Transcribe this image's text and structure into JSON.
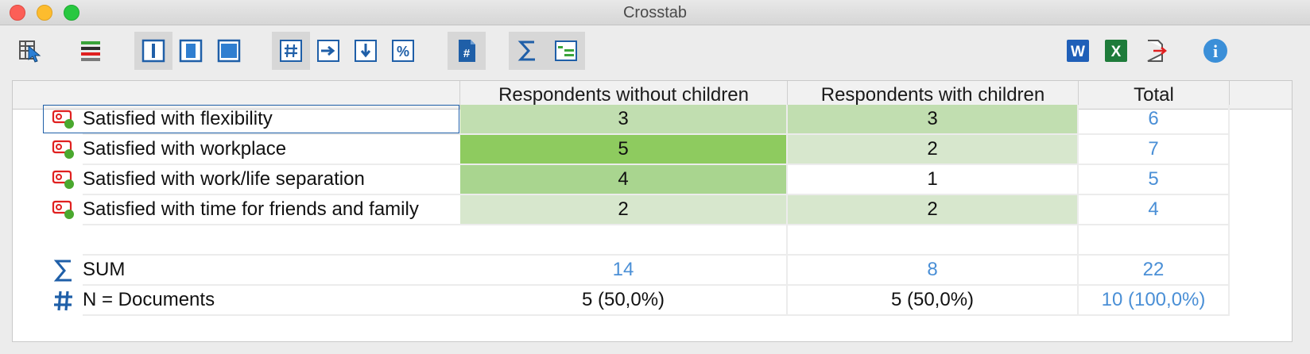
{
  "window": {
    "title": "Crosstab"
  },
  "toolbar": {
    "buttons": [
      {
        "name": "select-columns-button",
        "icon": "table-cursor-icon"
      },
      {
        "name": "color-bars-button",
        "icon": "color-bars-icon"
      },
      {
        "name": "view-column-button",
        "icon": "column-view-icon"
      },
      {
        "name": "view-cell-button",
        "icon": "cell-view-icon"
      },
      {
        "name": "view-full-button",
        "icon": "full-view-icon"
      },
      {
        "name": "show-counts-button",
        "icon": "hash-icon"
      },
      {
        "name": "row-percent-button",
        "icon": "arrow-right-icon"
      },
      {
        "name": "column-percent-button",
        "icon": "arrow-down-icon"
      },
      {
        "name": "percent-button",
        "icon": "percent-icon"
      },
      {
        "name": "document-count-button",
        "icon": "hash-document-icon"
      },
      {
        "name": "sum-button",
        "icon": "sigma-icon"
      },
      {
        "name": "code-structure-button",
        "icon": "code-structure-icon"
      },
      {
        "name": "export-word-button",
        "icon": "word-icon",
        "label": "W"
      },
      {
        "name": "export-excel-button",
        "icon": "excel-icon",
        "label": "X"
      },
      {
        "name": "export-button",
        "icon": "export-icon"
      },
      {
        "name": "info-button",
        "icon": "info-icon",
        "label": "i"
      }
    ]
  },
  "table": {
    "headers": [
      "Respondents without children",
      "Respondents with children",
      "Total"
    ],
    "rows": [
      {
        "label": "Satisfied with flexibility",
        "values": [
          "3",
          "3"
        ],
        "total": "6"
      },
      {
        "label": "Satisfied with workplace",
        "values": [
          "5",
          "2"
        ],
        "total": "7"
      },
      {
        "label": "Satisfied with work/life separation",
        "values": [
          "4",
          "1"
        ],
        "total": "5"
      },
      {
        "label": "Satisfied with time for friends and family",
        "values": [
          "2",
          "2"
        ],
        "total": "4"
      }
    ],
    "sum": {
      "label": "SUM",
      "values": [
        "14",
        "8"
      ],
      "total": "22"
    },
    "n_docs": {
      "label": "N = Documents",
      "values": [
        "5 (50,0%)",
        "5 (50,0%)"
      ],
      "total": "10 (100,0%)"
    }
  },
  "colors": {
    "heat_low": "#d7e7cd",
    "heat_mid": "#c1deb0",
    "heat_midhigh": "#a9d58f",
    "heat_high": "#8ecb5f",
    "total_blue": "#4a8fd6",
    "icon_blue": "#1f5fa8"
  }
}
